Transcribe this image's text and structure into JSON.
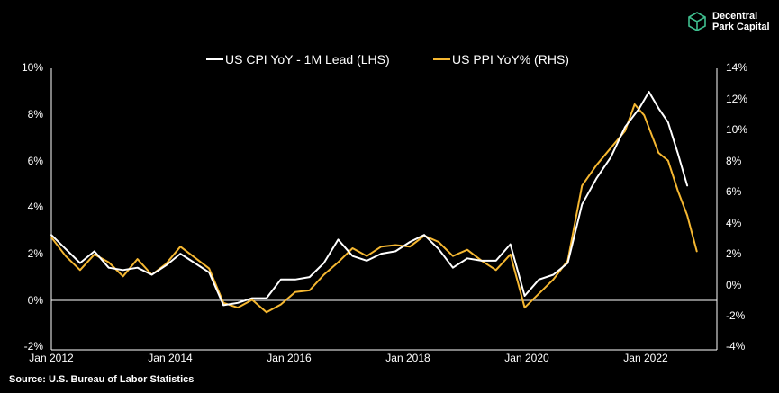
{
  "brand": {
    "line1": "Decentral",
    "line2": "Park Capital",
    "logo_icon": "cube-icon"
  },
  "source": "Source: U.S. Bureau of Labor Statistics",
  "chart_data": {
    "type": "line",
    "title": "",
    "legend_placement": "top-center",
    "grid": false,
    "x_tick_labels": [
      "Jan 2012",
      "Jan 2014",
      "Jan 2016",
      "Jan 2018",
      "Jan 2020",
      "Jan 2022"
    ],
    "y_left": {
      "range": [
        -2,
        10
      ],
      "ticks": [
        -2,
        0,
        2,
        4,
        6,
        8,
        10
      ],
      "tick_labels": [
        "-2%",
        "0%",
        "2%",
        "4%",
        "6%",
        "8%",
        "10%"
      ]
    },
    "y_right": {
      "range": [
        -4,
        14
      ],
      "ticks": [
        -4,
        -2,
        0,
        2,
        4,
        6,
        8,
        10,
        12,
        14
      ],
      "tick_labels": [
        "-4%",
        "-2%",
        "0%",
        "2%",
        "4%",
        "6%",
        "8%",
        "10%",
        "12%",
        "14%"
      ]
    },
    "series": [
      {
        "name": "US CPI YoY - 1M Lead (LHS)",
        "axis": "left",
        "color": "#ffffff",
        "points": [
          [
            "2012-01",
            2.9
          ],
          [
            "2012-04",
            2.3
          ],
          [
            "2012-07",
            1.7
          ],
          [
            "2012-10",
            2.2
          ],
          [
            "2013-01",
            1.5
          ],
          [
            "2013-04",
            1.4
          ],
          [
            "2013-07",
            1.5
          ],
          [
            "2013-10",
            1.2
          ],
          [
            "2014-01",
            1.6
          ],
          [
            "2014-04",
            2.1
          ],
          [
            "2014-07",
            1.7
          ],
          [
            "2014-10",
            1.3
          ],
          [
            "2015-01",
            -0.1
          ],
          [
            "2015-04",
            0.0
          ],
          [
            "2015-07",
            0.2
          ],
          [
            "2015-10",
            0.2
          ],
          [
            "2016-01",
            1.0
          ],
          [
            "2016-04",
            1.0
          ],
          [
            "2016-07",
            1.1
          ],
          [
            "2016-10",
            1.7
          ],
          [
            "2017-01",
            2.7
          ],
          [
            "2017-04",
            2.0
          ],
          [
            "2017-07",
            1.8
          ],
          [
            "2017-10",
            2.1
          ],
          [
            "2018-01",
            2.2
          ],
          [
            "2018-04",
            2.6
          ],
          [
            "2018-07",
            2.9
          ],
          [
            "2018-10",
            2.3
          ],
          [
            "2019-01",
            1.5
          ],
          [
            "2019-04",
            1.9
          ],
          [
            "2019-07",
            1.8
          ],
          [
            "2019-10",
            1.8
          ],
          [
            "2020-01",
            2.5
          ],
          [
            "2020-04",
            0.3
          ],
          [
            "2020-07",
            1.0
          ],
          [
            "2020-10",
            1.2
          ],
          [
            "2021-01",
            1.7
          ],
          [
            "2021-04",
            4.2
          ],
          [
            "2021-07",
            5.3
          ],
          [
            "2021-10",
            6.2
          ],
          [
            "2022-01",
            7.5
          ],
          [
            "2022-04",
            8.3
          ],
          [
            "2022-06",
            9.0
          ],
          [
            "2022-08",
            8.3
          ],
          [
            "2022-10",
            7.7
          ],
          [
            "2022-12",
            6.4
          ],
          [
            "2023-02",
            5.0
          ]
        ]
      },
      {
        "name": "US PPI YoY% (RHS)",
        "axis": "right",
        "color": "#f5b731",
        "points": [
          [
            "2012-01",
            3.2
          ],
          [
            "2012-04",
            2.0
          ],
          [
            "2012-07",
            1.1
          ],
          [
            "2012-10",
            2.1
          ],
          [
            "2013-01",
            1.6
          ],
          [
            "2013-04",
            0.7
          ],
          [
            "2013-07",
            1.8
          ],
          [
            "2013-10",
            0.8
          ],
          [
            "2014-01",
            1.5
          ],
          [
            "2014-04",
            2.6
          ],
          [
            "2014-07",
            1.9
          ],
          [
            "2014-10",
            1.2
          ],
          [
            "2015-01",
            -1.0
          ],
          [
            "2015-04",
            -1.3
          ],
          [
            "2015-07",
            -0.8
          ],
          [
            "2015-10",
            -1.6
          ],
          [
            "2016-01",
            -1.1
          ],
          [
            "2016-04",
            -0.3
          ],
          [
            "2016-07",
            -0.2
          ],
          [
            "2016-10",
            0.8
          ],
          [
            "2017-01",
            1.6
          ],
          [
            "2017-04",
            2.5
          ],
          [
            "2017-07",
            2.0
          ],
          [
            "2017-10",
            2.6
          ],
          [
            "2018-01",
            2.7
          ],
          [
            "2018-04",
            2.6
          ],
          [
            "2018-07",
            3.3
          ],
          [
            "2018-10",
            2.9
          ],
          [
            "2019-01",
            2.0
          ],
          [
            "2019-04",
            2.4
          ],
          [
            "2019-07",
            1.7
          ],
          [
            "2019-10",
            1.1
          ],
          [
            "2020-01",
            2.1
          ],
          [
            "2020-04",
            -1.3
          ],
          [
            "2020-07",
            -0.4
          ],
          [
            "2020-10",
            0.5
          ],
          [
            "2021-01",
            1.7
          ],
          [
            "2021-04",
            6.5
          ],
          [
            "2021-07",
            7.8
          ],
          [
            "2021-10",
            8.9
          ],
          [
            "2022-01",
            10.0
          ],
          [
            "2022-03",
            11.7
          ],
          [
            "2022-05",
            11.0
          ],
          [
            "2022-08",
            8.6
          ],
          [
            "2022-10",
            8.1
          ],
          [
            "2022-12",
            6.2
          ],
          [
            "2023-02",
            4.6
          ],
          [
            "2023-04",
            2.3
          ]
        ]
      }
    ]
  }
}
